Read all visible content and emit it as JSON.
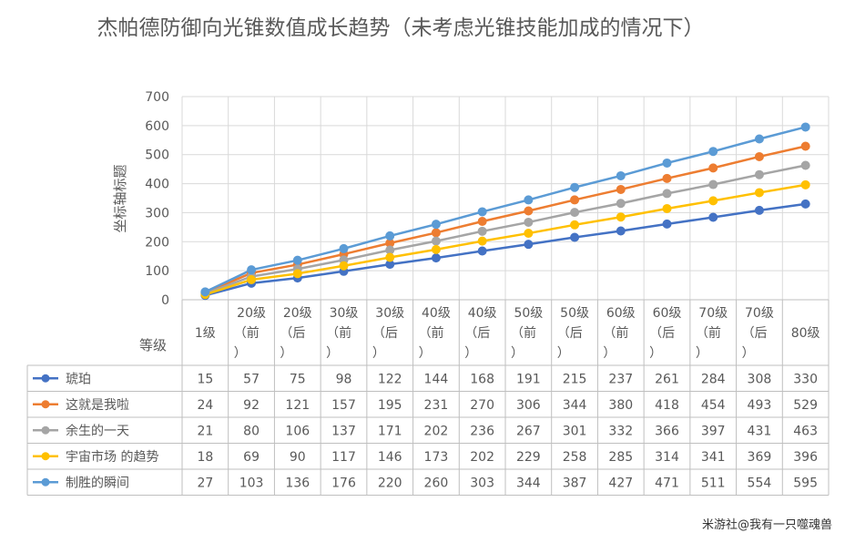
{
  "chart_data": {
    "type": "line",
    "title": "杰帕德防御向光锥数值成长趋势（未考虑光锥技能加成的情况下）",
    "ylabel": "坐标轴标题",
    "xlabel": "等级",
    "ylim": [
      0,
      700
    ],
    "yticks": [
      0,
      100,
      200,
      300,
      400,
      500,
      600,
      700
    ],
    "grid": true,
    "legend": "data-table",
    "categories": [
      "1级",
      "20级（前）",
      "20级（后）",
      "30级（前）",
      "30级（后）",
      "40级（前）",
      "40级（后）",
      "50级（前）",
      "50级（后）",
      "60级（前）",
      "60级（后）",
      "70级（前）",
      "70级（后）",
      "80级"
    ],
    "category_lines": [
      [
        "1级"
      ],
      [
        "20级",
        "（前",
        "）"
      ],
      [
        "20级",
        "（后",
        "）"
      ],
      [
        "30级",
        "（前",
        "）"
      ],
      [
        "30级",
        "（后",
        "）"
      ],
      [
        "40级",
        "（前",
        "）"
      ],
      [
        "40级",
        "（后",
        "）"
      ],
      [
        "50级",
        "（前",
        "）"
      ],
      [
        "50级",
        "（后",
        "）"
      ],
      [
        "60级",
        "（前",
        "）"
      ],
      [
        "60级",
        "（后",
        "）"
      ],
      [
        "70级",
        "（前",
        "）"
      ],
      [
        "70级",
        "（后",
        "）"
      ],
      [
        "80级"
      ]
    ],
    "series": [
      {
        "name": "琥珀",
        "color": "#4472C4",
        "values": [
          15,
          57,
          75,
          98,
          122,
          144,
          168,
          191,
          215,
          237,
          261,
          284,
          308,
          330
        ]
      },
      {
        "name": "这就是我啦",
        "color": "#ED7D31",
        "values": [
          24,
          92,
          121,
          157,
          195,
          231,
          270,
          306,
          344,
          380,
          418,
          454,
          493,
          529
        ]
      },
      {
        "name": "余生的一天",
        "color": "#A5A5A5",
        "values": [
          21,
          80,
          106,
          137,
          171,
          202,
          236,
          267,
          301,
          332,
          366,
          397,
          431,
          463
        ]
      },
      {
        "name": "宇宙市场 的趋势",
        "color": "#FFC000",
        "values": [
          18,
          69,
          90,
          117,
          146,
          173,
          202,
          229,
          258,
          285,
          314,
          341,
          369,
          396
        ]
      },
      {
        "name": "制胜的瞬间",
        "color": "#5B9BD5",
        "values": [
          27,
          103,
          136,
          176,
          220,
          260,
          303,
          344,
          387,
          427,
          471,
          511,
          554,
          595
        ]
      }
    ]
  },
  "watermark": "米游社@我有一只噬魂兽"
}
